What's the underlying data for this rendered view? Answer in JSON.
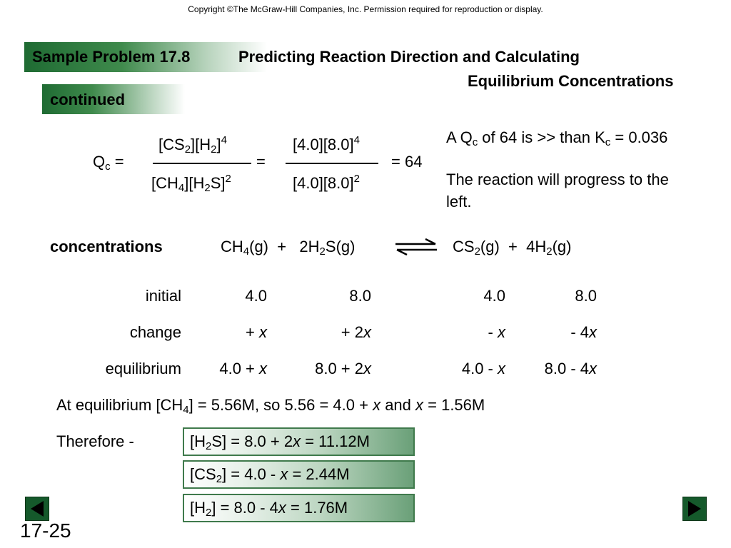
{
  "copyright": "Copyright ©The McGraw-Hill Companies, Inc.  Permission required for reproduction or display.",
  "header": {
    "label": "Sample Problem 17.8",
    "title_line1": "Predicting Reaction Direction and Calculating",
    "title_line2": "Equilibrium Concentrations",
    "continued": "continued"
  },
  "qc": {
    "lhs": "Q",
    "lhs_sub": "c",
    "lhs_eq": " =",
    "equals": "=",
    "result": "= 64"
  },
  "note": {
    "line1_a": "A Q",
    "line1_sub1": "c",
    "line1_b": " of 64 is >> than K",
    "line1_sub2": "c",
    "line1_c": " = 0.036",
    "line2": "The reaction will progress to the",
    "line3": "left."
  },
  "table": {
    "head": "concentrations",
    "rows": [
      {
        "label": "initial",
        "c1": "4.0",
        "c2": "8.0",
        "c3": "4.0",
        "c4": "8.0"
      },
      {
        "label": "change"
      },
      {
        "label": "equilibrium"
      }
    ]
  },
  "at_eq": {
    "a": "At equilibrium [CH",
    "sub": "4",
    "b": "] = 5.56M, so 5.56 = 4.0 + ",
    "x1": "x",
    "c": " and ",
    "x2": "x",
    "d": " = 1.56M"
  },
  "therefore": "Therefore -",
  "results": {
    "h2s": {
      "a": "[H",
      "sub": "2",
      "b": "S] = 8.0 + 2",
      "x": "x",
      "c": " = 11.12M"
    },
    "cs2": {
      "a": "[CS",
      "sub": "2",
      "b": "] = 4.0 - ",
      "x": "x",
      "c": " = 2.44M"
    },
    "h2": {
      "a": "[H",
      "sub": "2",
      "b": "] = 8.0 - 4",
      "x": "x",
      "c": " = 1.76M"
    }
  },
  "slide_number": "17-25",
  "colors": {
    "accent_green": "#1f6b33",
    "box_border": "#3f7a4c"
  }
}
